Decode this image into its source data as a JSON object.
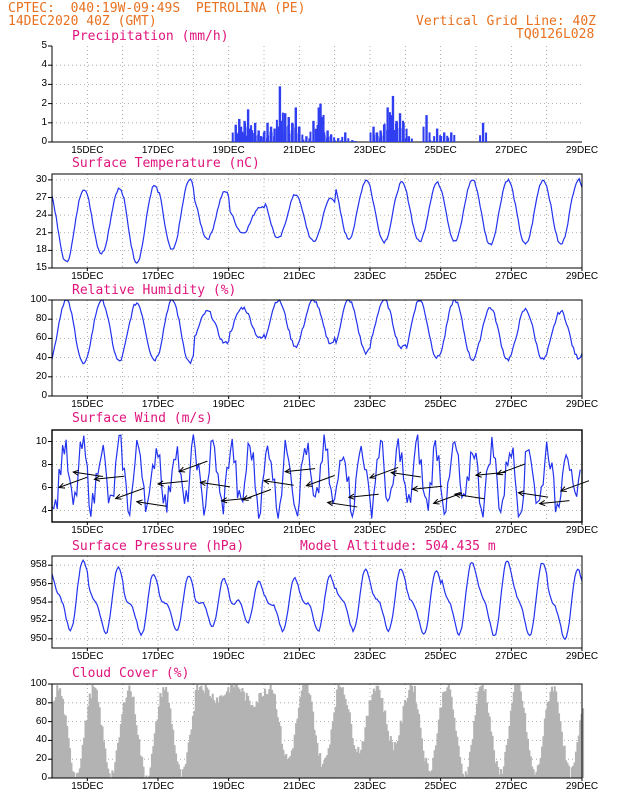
{
  "header": {
    "line1_left": "CPTEC:  040:19W-09:49S  PETROLINA (PE)",
    "line2_left": "14DEC2020 40Z (GMT)",
    "line2_right": "Vertical Grid Line: 40Z",
    "line3_right": "TQ0126L028"
  },
  "colors": {
    "header": "#e8711f",
    "title": "#e0147c",
    "line": "#2233ee",
    "bar": "#2f3ef0",
    "cloud": "#b3b3b3",
    "arrow": "#000000"
  },
  "x_ticks": [
    "15DEC",
    "17DEC",
    "19DEC",
    "21DEC",
    "23DEC",
    "25DEC",
    "27DEC",
    "29DEC"
  ],
  "chart_data": [
    {
      "id": "precip",
      "type": "bar",
      "title": "Precipitation (mm/h)",
      "ylim": [
        0,
        5
      ],
      "yticks": [
        "0",
        "1",
        "2",
        "3",
        "4",
        "5"
      ],
      "xlim": [
        14.0,
        29.0
      ],
      "spikes": [
        [
          19.2,
          0.9
        ],
        [
          19.3,
          1.2
        ],
        [
          19.35,
          0.8
        ],
        [
          19.45,
          1.1
        ],
        [
          19.55,
          1.7
        ],
        [
          19.6,
          0.7
        ],
        [
          19.75,
          1.0
        ],
        [
          19.85,
          0.6
        ],
        [
          20.0,
          0.5
        ],
        [
          20.1,
          1.0
        ],
        [
          20.2,
          0.8
        ],
        [
          20.3,
          0.7
        ],
        [
          20.45,
          2.9
        ],
        [
          20.5,
          1.1
        ],
        [
          20.6,
          1.5
        ],
        [
          20.7,
          1.3
        ],
        [
          20.8,
          1.0
        ],
        [
          20.9,
          1.8
        ],
        [
          21.0,
          0.8
        ],
        [
          21.2,
          0.3
        ],
        [
          21.4,
          1.1
        ],
        [
          21.55,
          1.8
        ],
        [
          21.6,
          2.0
        ],
        [
          21.7,
          0.5
        ],
        [
          21.8,
          0.6
        ],
        [
          21.9,
          0.4
        ],
        [
          22.1,
          0.2
        ],
        [
          22.3,
          0.5
        ],
        [
          22.5,
          0.1
        ],
        [
          23.1,
          0.8
        ],
        [
          23.2,
          0.5
        ],
        [
          23.3,
          0.6
        ],
        [
          23.4,
          0.9
        ],
        [
          23.5,
          1.8
        ],
        [
          23.6,
          1.4
        ],
        [
          23.65,
          2.4
        ],
        [
          23.75,
          1.1
        ],
        [
          23.85,
          1.5
        ],
        [
          23.95,
          1.0
        ],
        [
          24.1,
          0.3
        ],
        [
          24.6,
          1.4
        ],
        [
          24.7,
          0.1
        ],
        [
          24.9,
          0.7
        ],
        [
          25.1,
          0.5
        ],
        [
          25.3,
          0.5
        ],
        [
          26.2,
          1.0
        ]
      ]
    },
    {
      "id": "temp",
      "type": "line",
      "title": "Surface Temperature (nC)",
      "ylim": [
        15,
        31
      ],
      "yticks": [
        "15",
        "18",
        "21",
        "24",
        "27",
        "30"
      ],
      "xlim": [
        14.0,
        29.0
      ],
      "daily_max": [
        28.5,
        28.5,
        29.0,
        30.0,
        28.0,
        25.5,
        27.5,
        27.0,
        30.0,
        29.5,
        29.5,
        30.0,
        30.0,
        30.0,
        30.0
      ],
      "daily_min": [
        16.0,
        17.5,
        16.0,
        18.0,
        20.0,
        21.0,
        20.0,
        19.5,
        20.0,
        19.5,
        19.5,
        19.5,
        19.0,
        19.0,
        19.0
      ]
    },
    {
      "id": "rh",
      "type": "line",
      "title": "Relative Humidity (%)",
      "ylim": [
        0,
        100
      ],
      "yticks": [
        "0",
        "20",
        "40",
        "60",
        "80",
        "100"
      ],
      "xlim": [
        14.0,
        29.0
      ],
      "daily_max": [
        100,
        100,
        97,
        100,
        88,
        92,
        100,
        100,
        100,
        100,
        100,
        100,
        92,
        90,
        88
      ],
      "daily_min": [
        33,
        36,
        38,
        35,
        55,
        60,
        52,
        55,
        45,
        50,
        40,
        38,
        38,
        38,
        40
      ]
    },
    {
      "id": "wind",
      "type": "line",
      "title": "Surface Wind (m/s)",
      "ylim": [
        3,
        11
      ],
      "yticks": [
        "4",
        "6",
        "8",
        "10"
      ],
      "xlim": [
        14.0,
        29.0
      ],
      "series_hint": "wind speed with direction arrows",
      "arrow_days": [
        14.2,
        14.6,
        15.2,
        15.8,
        16.4,
        17.0,
        17.6,
        18.2,
        18.8,
        19.4,
        20.0,
        20.6,
        21.2,
        21.8,
        22.4,
        23.0,
        23.6,
        24.2,
        24.8,
        25.4,
        26.0,
        26.6,
        27.2,
        27.8,
        28.4
      ]
    },
    {
      "id": "pressure",
      "type": "line",
      "title": "Surface Pressure (hPa)",
      "annotation": "Model Altitude: 504.435 m",
      "ylim": [
        949,
        959
      ],
      "yticks": [
        "950",
        "952",
        "954",
        "956",
        "958"
      ],
      "xlim": [
        14.0,
        29.0
      ],
      "daily_max": [
        958.0,
        957.2,
        956.5,
        956.2,
        955.8,
        955.5,
        956.0,
        956.2,
        957.0,
        957.0,
        956.8,
        957.8,
        958.0,
        957.8,
        957.0
      ],
      "daily_min": [
        951.5,
        951.2,
        951.0,
        951.5,
        952.0,
        952.5,
        951.5,
        951.5,
        951.5,
        951.5,
        951.0,
        951.0,
        950.8,
        950.8,
        950.5
      ]
    },
    {
      "id": "cloud",
      "type": "area",
      "title": "Cloud Cover (%)",
      "ylim": [
        0,
        100
      ],
      "yticks": [
        "0",
        "20",
        "40",
        "60",
        "80",
        "100"
      ],
      "xlim": [
        14.0,
        29.0
      ],
      "daily_min": [
        5,
        5,
        3,
        3,
        85,
        80,
        20,
        15,
        30,
        35,
        10,
        5,
        5,
        5,
        5
      ],
      "daily_max": [
        95,
        95,
        96,
        96,
        99,
        99,
        99,
        99,
        99,
        99,
        99,
        99,
        99,
        99,
        97
      ]
    }
  ]
}
